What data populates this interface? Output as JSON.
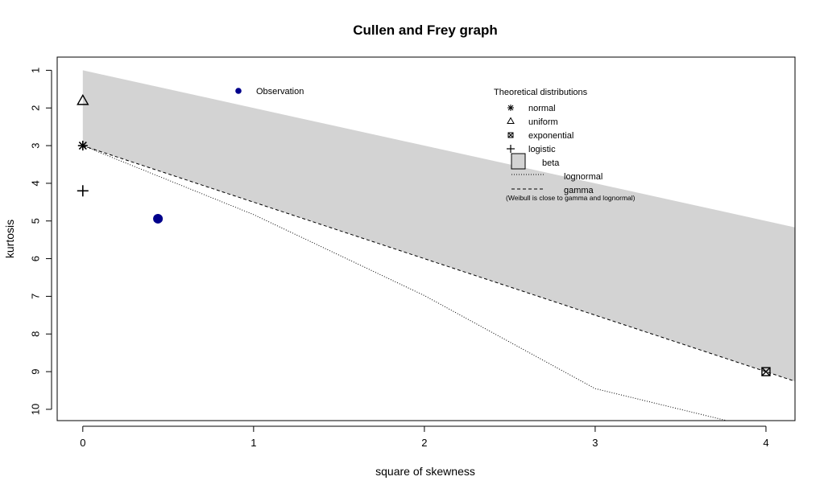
{
  "chart_data": {
    "type": "scatter",
    "title": "Cullen and Frey graph",
    "xlabel": "square of skewness",
    "ylabel": "kurtosis",
    "xlim": [
      -0.15,
      4.17
    ],
    "ylim": [
      10.3,
      0.65
    ],
    "xticks": [
      0,
      1,
      2,
      3,
      4
    ],
    "yticks": [
      1,
      2,
      3,
      4,
      5,
      6,
      7,
      8,
      9,
      10
    ],
    "observation": {
      "label": "Observation",
      "x": 0.44,
      "y": 4.94,
      "color": "#00008B"
    },
    "theoretical_points": [
      {
        "name": "normal",
        "x": 0,
        "y": 3
      },
      {
        "name": "uniform",
        "x": 0,
        "y": 1.8
      },
      {
        "name": "exponential",
        "x": 4,
        "y": 9
      },
      {
        "name": "logistic",
        "x": 0,
        "y": 4.2
      }
    ],
    "beta_region": {
      "upper": [
        [
          0,
          1
        ],
        [
          4.17,
          5.17
        ]
      ],
      "lower": [
        [
          0,
          3
        ],
        [
          4.17,
          9.255
        ]
      ],
      "color": "#D3D3D3"
    },
    "lines": [
      {
        "name": "lognormal",
        "style": "dotted",
        "points": [
          [
            0,
            3
          ],
          [
            1,
            4.83
          ],
          [
            2,
            6.98
          ],
          [
            3,
            9.45
          ],
          [
            3.77,
            10.3
          ]
        ]
      },
      {
        "name": "gamma",
        "style": "dashed",
        "points": [
          [
            0,
            3
          ],
          [
            4.17,
            9.255
          ]
        ]
      }
    ],
    "legend": {
      "observation_title": "Observation",
      "theoretical_title": "Theoretical distributions",
      "items": [
        "normal",
        "uniform",
        "exponential",
        "logistic",
        "beta",
        "lognormal",
        "gamma"
      ],
      "note": "(Weibull is close to gamma and lognormal)",
      "position": "top"
    }
  }
}
